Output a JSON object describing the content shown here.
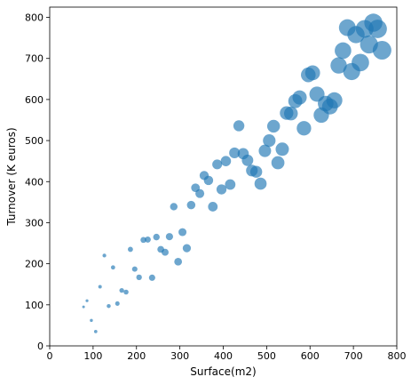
{
  "chart_data": {
    "type": "scatter",
    "title": "",
    "xlabel": "Surface(m2)",
    "ylabel": "Turnover (K euros)",
    "xlim": [
      0,
      800
    ],
    "ylim": [
      0,
      825
    ],
    "xticks": [
      0,
      100,
      200,
      300,
      400,
      500,
      600,
      700,
      800
    ],
    "yticks": [
      0,
      100,
      200,
      300,
      400,
      500,
      600,
      700,
      800
    ],
    "grid": false,
    "marker_color": "#1f77b4",
    "marker_alpha": 0.65,
    "size_encodes": "Surface(m2)",
    "points": [
      {
        "x": 78,
        "y": 95
      },
      {
        "x": 86,
        "y": 110
      },
      {
        "x": 96,
        "y": 62
      },
      {
        "x": 106,
        "y": 35
      },
      {
        "x": 116,
        "y": 144
      },
      {
        "x": 126,
        "y": 220
      },
      {
        "x": 136,
        "y": 97
      },
      {
        "x": 146,
        "y": 191
      },
      {
        "x": 156,
        "y": 103
      },
      {
        "x": 166,
        "y": 135
      },
      {
        "x": 176,
        "y": 131
      },
      {
        "x": 186,
        "y": 235
      },
      {
        "x": 196,
        "y": 187
      },
      {
        "x": 206,
        "y": 167
      },
      {
        "x": 216,
        "y": 258
      },
      {
        "x": 226,
        "y": 259
      },
      {
        "x": 236,
        "y": 166
      },
      {
        "x": 246,
        "y": 265
      },
      {
        "x": 256,
        "y": 235
      },
      {
        "x": 266,
        "y": 228
      },
      {
        "x": 276,
        "y": 266
      },
      {
        "x": 286,
        "y": 339
      },
      {
        "x": 296,
        "y": 205
      },
      {
        "x": 306,
        "y": 277
      },
      {
        "x": 316,
        "y": 238
      },
      {
        "x": 326,
        "y": 343
      },
      {
        "x": 336,
        "y": 385
      },
      {
        "x": 346,
        "y": 371
      },
      {
        "x": 356,
        "y": 415
      },
      {
        "x": 366,
        "y": 403
      },
      {
        "x": 376,
        "y": 339
      },
      {
        "x": 386,
        "y": 442
      },
      {
        "x": 396,
        "y": 381
      },
      {
        "x": 406,
        "y": 450
      },
      {
        "x": 416,
        "y": 393
      },
      {
        "x": 426,
        "y": 470
      },
      {
        "x": 436,
        "y": 536
      },
      {
        "x": 446,
        "y": 468
      },
      {
        "x": 456,
        "y": 452
      },
      {
        "x": 466,
        "y": 427
      },
      {
        "x": 476,
        "y": 424
      },
      {
        "x": 486,
        "y": 395
      },
      {
        "x": 496,
        "y": 475
      },
      {
        "x": 506,
        "y": 500
      },
      {
        "x": 516,
        "y": 535
      },
      {
        "x": 526,
        "y": 446
      },
      {
        "x": 536,
        "y": 479
      },
      {
        "x": 546,
        "y": 567
      },
      {
        "x": 556,
        "y": 566
      },
      {
        "x": 566,
        "y": 596
      },
      {
        "x": 576,
        "y": 605
      },
      {
        "x": 586,
        "y": 530
      },
      {
        "x": 596,
        "y": 660
      },
      {
        "x": 606,
        "y": 665
      },
      {
        "x": 616,
        "y": 613
      },
      {
        "x": 626,
        "y": 562
      },
      {
        "x": 636,
        "y": 590
      },
      {
        "x": 646,
        "y": 583
      },
      {
        "x": 656,
        "y": 598
      },
      {
        "x": 666,
        "y": 683
      },
      {
        "x": 676,
        "y": 719
      },
      {
        "x": 686,
        "y": 775
      },
      {
        "x": 696,
        "y": 668
      },
      {
        "x": 706,
        "y": 758
      },
      {
        "x": 716,
        "y": 690
      },
      {
        "x": 726,
        "y": 772
      },
      {
        "x": 736,
        "y": 734
      },
      {
        "x": 746,
        "y": 787
      },
      {
        "x": 756,
        "y": 772
      },
      {
        "x": 766,
        "y": 720
      }
    ]
  }
}
